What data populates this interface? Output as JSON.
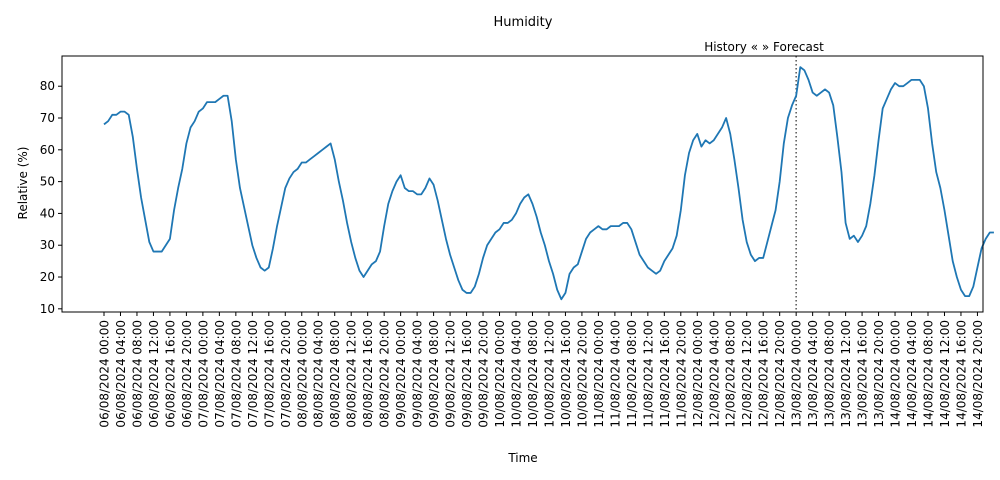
{
  "chart_data": {
    "type": "line",
    "title": "Humidity",
    "xlabel": "Time",
    "ylabel": "Relative (%)",
    "ylim": [
      9,
      89.5
    ],
    "yticks": [
      10,
      20,
      30,
      40,
      50,
      60,
      70,
      80
    ],
    "grid": false,
    "series_color": "#1f77b4",
    "annotation": "History «  » Forecast",
    "divider_label": "13/08/2024 00:00",
    "x_labels": [
      "06/08/2024 00:00",
      "06/08/2024 04:00",
      "06/08/2024 08:00",
      "06/08/2024 12:00",
      "06/08/2024 16:00",
      "06/08/2024 20:00",
      "07/08/2024 00:00",
      "07/08/2024 04:00",
      "07/08/2024 08:00",
      "07/08/2024 12:00",
      "07/08/2024 16:00",
      "07/08/2024 20:00",
      "08/08/2024 00:00",
      "08/08/2024 04:00",
      "08/08/2024 08:00",
      "08/08/2024 12:00",
      "08/08/2024 16:00",
      "08/08/2024 20:00",
      "09/08/2024 00:00",
      "09/08/2024 04:00",
      "09/08/2024 08:00",
      "09/08/2024 12:00",
      "09/08/2024 16:00",
      "09/08/2024 20:00",
      "10/08/2024 00:00",
      "10/08/2024 04:00",
      "10/08/2024 08:00",
      "10/08/2024 12:00",
      "10/08/2024 16:00",
      "10/08/2024 20:00",
      "11/08/2024 00:00",
      "11/08/2024 04:00",
      "11/08/2024 08:00",
      "11/08/2024 12:00",
      "11/08/2024 16:00",
      "11/08/2024 20:00",
      "12/08/2024 00:00",
      "12/08/2024 04:00",
      "12/08/2024 08:00",
      "12/08/2024 12:00",
      "12/08/2024 16:00",
      "12/08/2024 20:00",
      "13/08/2024 00:00",
      "13/08/2024 04:00",
      "13/08/2024 08:00",
      "13/08/2024 12:00",
      "13/08/2024 16:00",
      "13/08/2024 20:00",
      "14/08/2024 00:00",
      "14/08/2024 04:00",
      "14/08/2024 08:00",
      "14/08/2024 12:00",
      "14/08/2024 16:00",
      "14/08/2024 20:00"
    ],
    "x_last": "14/08/2024 23:00",
    "values": [
      68,
      69,
      71,
      71,
      72,
      72,
      71,
      64,
      54,
      45,
      38,
      31,
      28,
      28,
      28,
      30,
      32,
      41,
      48,
      54,
      62,
      67,
      69,
      72,
      73,
      75,
      75,
      75,
      76,
      77,
      77,
      69,
      57,
      48,
      42,
      36,
      30,
      26,
      23,
      22,
      23,
      29,
      36,
      42,
      48,
      51,
      53,
      54,
      56,
      56,
      57,
      58,
      59,
      60,
      61,
      62,
      57,
      50,
      44,
      37,
      31,
      26,
      22,
      20,
      22,
      24,
      25,
      28,
      36,
      43,
      47,
      50,
      52,
      48,
      47,
      47,
      46,
      46,
      48,
      51,
      49,
      44,
      38,
      32,
      27,
      23,
      19,
      16,
      15,
      15,
      17,
      21,
      26,
      30,
      32,
      34,
      35,
      37,
      37,
      38,
      40,
      43,
      45,
      46,
      43,
      39,
      34,
      30,
      25,
      21,
      16,
      13,
      15,
      21,
      23,
      24,
      28,
      32,
      34,
      35,
      36,
      35,
      35,
      36,
      36,
      36,
      37,
      37,
      35,
      31,
      27,
      25,
      23,
      22,
      21,
      22,
      25,
      27,
      29,
      33,
      41,
      52,
      59,
      63,
      65,
      61,
      63,
      62,
      63,
      65,
      67,
      70,
      65,
      57,
      48,
      38,
      31,
      27,
      25,
      26,
      26,
      31,
      36,
      41,
      50,
      62,
      70,
      74,
      77,
      86,
      85,
      82,
      78,
      77,
      78,
      79,
      78,
      74,
      64,
      53,
      37,
      32,
      33,
      31,
      33,
      36,
      43,
      52,
      63,
      73,
      76,
      79,
      81,
      80,
      80,
      81,
      82,
      82,
      82,
      80,
      73,
      62,
      53,
      48,
      41,
      33,
      25,
      20,
      16,
      14,
      14,
      17,
      23,
      29,
      32,
      34,
      34
    ]
  }
}
